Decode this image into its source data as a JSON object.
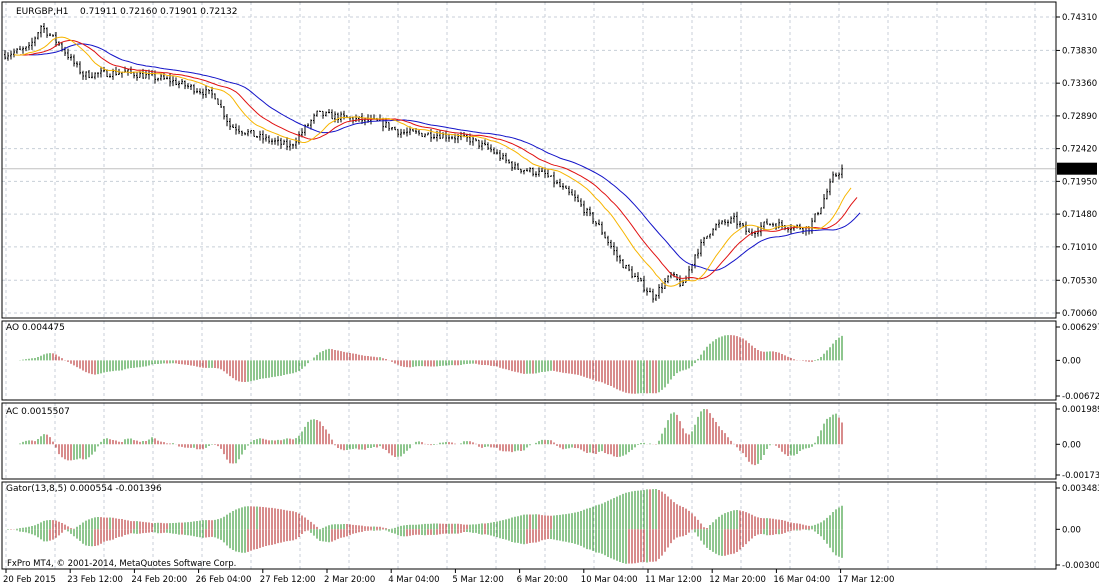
{
  "colors": {
    "background": "#ffffff",
    "grid": "#c8cfd8",
    "frame": "#000000",
    "candle": "#000000",
    "lips": "#f7b500",
    "teeth": "#e01010",
    "jaw": "#1414c8",
    "up": "#1e8c1e",
    "down": "#b01818",
    "price_tag_bg": "#000000",
    "price_tag_fg": "#ffffff"
  },
  "main": {
    "symbol_label": "EURGBP,H1",
    "ohlc_label": "0.71911 0.72160 0.71901 0.72132",
    "current_price": "0.72132",
    "current_price_value": 0.72132,
    "y_range": [
      0.7006,
      0.7431
    ],
    "y_ticks": [
      "0.74310",
      "0.73830",
      "0.73360",
      "0.72890",
      "0.72420",
      "0.71950",
      "0.71480",
      "0.71010",
      "0.70530",
      "0.70060"
    ]
  },
  "ao": {
    "label": "AO 0.004475",
    "range": [
      -0.006727,
      0.006297
    ],
    "ticks": [
      "0.006297",
      "0.00",
      "-0.006727"
    ]
  },
  "ac": {
    "label": "AC 0.0015507",
    "range": [
      -0.001731,
      0.001989
    ],
    "ticks": [
      "0.001989",
      "0.00",
      "-0.001731"
    ]
  },
  "gator": {
    "label": "Gator(13,8,5) 0.000554 -0.001396",
    "range": [
      -0.003009,
      0.003483
    ],
    "ticks": [
      "0.003483",
      "0.00",
      "-0.003009"
    ]
  },
  "copyright": "FxPro MT4, © 2001-2014, MetaQuotes Software Corp.",
  "time_labels": [
    "20 Feb 2015",
    "23 Feb 12:00",
    "24 Feb 20:00",
    "26 Feb 04:00",
    "27 Feb 12:00",
    "2 Mar 20:00",
    "4 Mar 04:00",
    "5 Mar 12:00",
    "6 Mar 20:00",
    "10 Mar 04:00",
    "11 Mar 12:00",
    "12 Mar 20:00",
    "16 Mar 04:00",
    "17 Mar 12:00"
  ],
  "chart_data": [
    {
      "type": "candlestick",
      "title": "EURGBP,H1",
      "ylim": [
        0.7006,
        0.7431
      ],
      "x": [
        "20 Feb 2015",
        "23 Feb 12:00",
        "24 Feb 20:00",
        "26 Feb 04:00",
        "27 Feb 12:00",
        "2 Mar 20:00",
        "4 Mar 04:00",
        "5 Mar 12:00",
        "6 Mar 20:00",
        "10 Mar 04:00",
        "11 Mar 12:00",
        "12 Mar 20:00",
        "16 Mar 04:00",
        "17 Mar 12:00"
      ],
      "close_at_labels": [
        0.7373,
        0.7345,
        0.7337,
        0.7275,
        0.7262,
        0.728,
        0.7268,
        0.725,
        0.721,
        0.7095,
        0.7045,
        0.7125,
        0.713,
        0.7213
      ]
    },
    {
      "type": "bar",
      "title": "AO 0.004475",
      "ylim": [
        -0.006727,
        0.006297
      ]
    },
    {
      "type": "bar",
      "title": "AC 0.0015507",
      "ylim": [
        -0.001731,
        0.001989
      ]
    },
    {
      "type": "bar",
      "title": "Gator(13,8,5) 0.000554 -0.001396",
      "ylim": [
        -0.003009,
        0.003483
      ]
    }
  ]
}
